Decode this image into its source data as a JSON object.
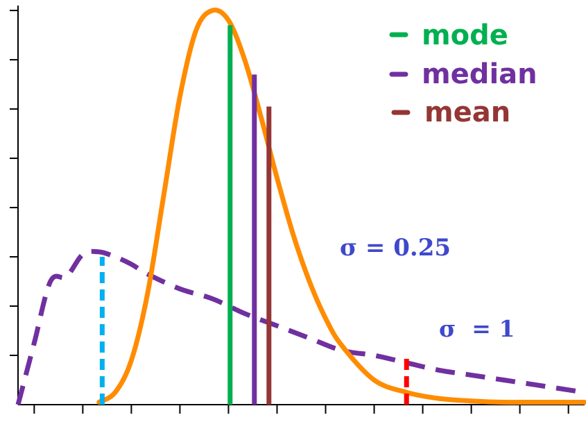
{
  "chart_data": {
    "type": "line",
    "title": "",
    "xlabel": "",
    "ylabel": "",
    "xlim": [
      0,
      3.5
    ],
    "ylim": [
      0,
      1.62
    ],
    "x_ticks": [
      0.1,
      0.4,
      0.7,
      1.0,
      1.3,
      1.6,
      1.9,
      2.2,
      2.5,
      2.8,
      3.1,
      3.4
    ],
    "y_ticks": [
      0.2,
      0.4,
      0.6,
      0.8,
      1.0,
      1.2,
      1.4,
      1.6
    ],
    "tick_labels_shown": false,
    "grid": false,
    "series": [
      {
        "name": "σ = 0.25",
        "line_style": "solid",
        "color": "#FF8C00",
        "x": [
          0.5,
          0.6,
          0.7,
          0.8,
          0.9,
          1.0,
          1.1,
          1.2,
          1.3,
          1.4,
          1.5,
          1.6,
          1.7,
          1.8,
          1.9,
          2.0,
          2.2,
          2.4,
          2.6,
          2.8,
          3.0,
          3.2,
          3.5
        ],
        "y": [
          0.01,
          0.05,
          0.18,
          0.45,
          0.85,
          1.25,
          1.52,
          1.6,
          1.56,
          1.4,
          1.17,
          0.92,
          0.69,
          0.5,
          0.35,
          0.24,
          0.1,
          0.05,
          0.025,
          0.015,
          0.01,
          0.01,
          0.01
        ]
      },
      {
        "name": "σ = 1",
        "line_style": "dashed",
        "color": "#7030A0",
        "x": [
          0.0,
          0.1,
          0.2,
          0.3,
          0.4,
          0.5,
          0.6,
          0.7,
          0.8,
          1.0,
          1.2,
          1.4,
          1.6,
          1.8,
          2.0,
          2.2,
          2.4,
          2.6,
          2.8,
          3.0,
          3.2,
          3.5
        ],
        "y": [
          0.0,
          0.25,
          0.5,
          0.52,
          0.61,
          0.62,
          0.6,
          0.57,
          0.53,
          0.47,
          0.43,
          0.37,
          0.32,
          0.27,
          0.22,
          0.2,
          0.17,
          0.14,
          0.12,
          0.1,
          0.08,
          0.05
        ]
      }
    ],
    "vertical_lines": [
      {
        "name": "mode",
        "x": 1.31,
        "y_top": 1.54,
        "color": "#00B050",
        "style": "solid"
      },
      {
        "name": "median",
        "x": 1.46,
        "y_top": 1.34,
        "color": "#7030A0",
        "style": "solid"
      },
      {
        "name": "mean",
        "x": 1.55,
        "y_top": 1.21,
        "color": "#943634",
        "style": "solid"
      },
      {
        "name": "sigma1-mode",
        "x": 0.52,
        "y_top": 0.6,
        "color": "#00B0F0",
        "style": "dashed"
      },
      {
        "name": "sigma1-mark",
        "x": 2.4,
        "y_top": 0.2,
        "color": "#FF0000",
        "style": "dashed"
      }
    ],
    "legend": {
      "placement": "top-right",
      "entries": [
        {
          "label": "mode",
          "color": "#00B050"
        },
        {
          "label": "median",
          "color": "#7030A0"
        },
        {
          "label": "mean",
          "color": "#943634"
        }
      ]
    },
    "annotations": [
      {
        "text": "σ = 0.25",
        "color": "#3F48CC",
        "x": 1.95,
        "y": 0.6
      },
      {
        "text": "σ  = 1",
        "color": "#3F48CC",
        "x": 2.52,
        "y": 0.27
      }
    ]
  }
}
